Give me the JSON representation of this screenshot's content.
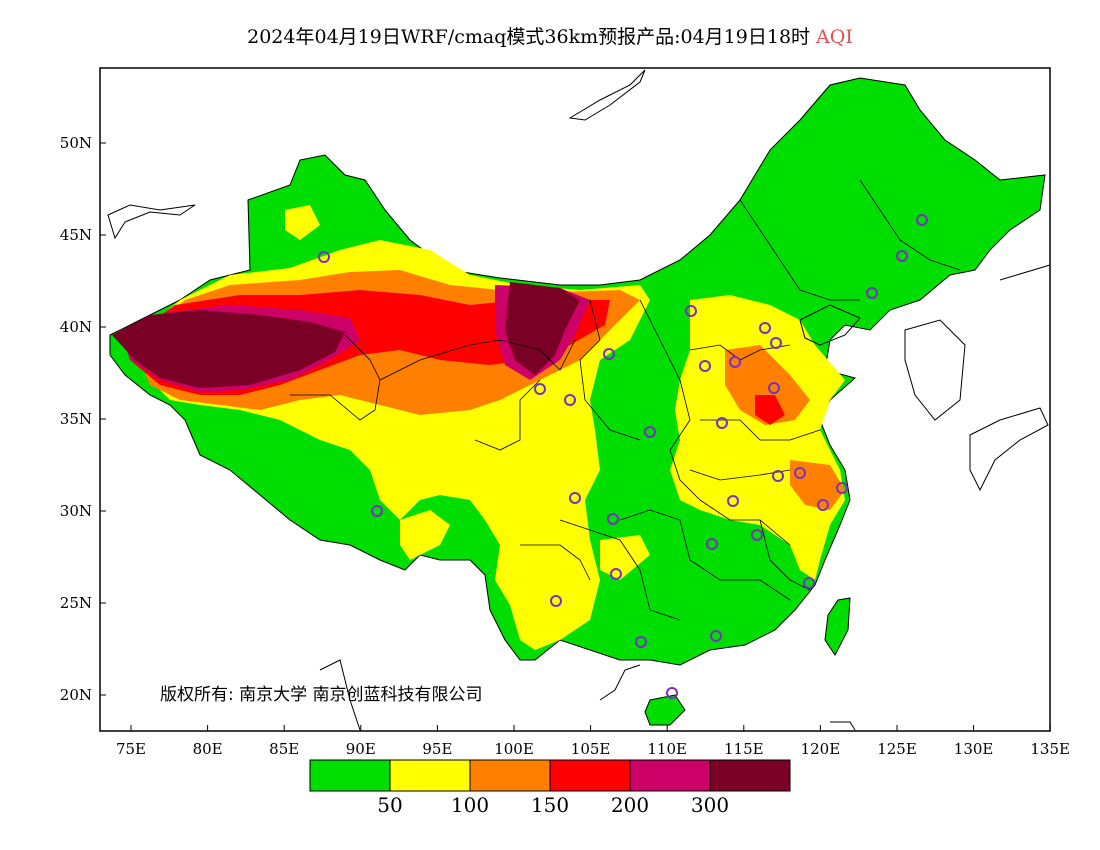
{
  "title": {
    "text": "2024年04月19日WRF/cmaq模式36km预报产品:04月19日18时",
    "variable": "AQI",
    "variable_color": "#e05050"
  },
  "axes": {
    "lat_labels": [
      "50N",
      "45N",
      "40N",
      "35N",
      "30N",
      "25N",
      "20N"
    ],
    "lon_labels": [
      "75E",
      "80E",
      "85E",
      "90E",
      "95E",
      "100E",
      "105E",
      "110E",
      "115E",
      "120E",
      "125E",
      "130E",
      "135E"
    ]
  },
  "legend": {
    "colors": [
      "#00dd00",
      "#ffff00",
      "#ff8000",
      "#ff0000",
      "#cc0066",
      "#7a0026"
    ],
    "labels": [
      "50",
      "100",
      "150",
      "200",
      "300"
    ]
  },
  "copyright": "版权所有: 南京大学 南京创蓝科技有限公司",
  "stations_color": "#7a30c0"
}
